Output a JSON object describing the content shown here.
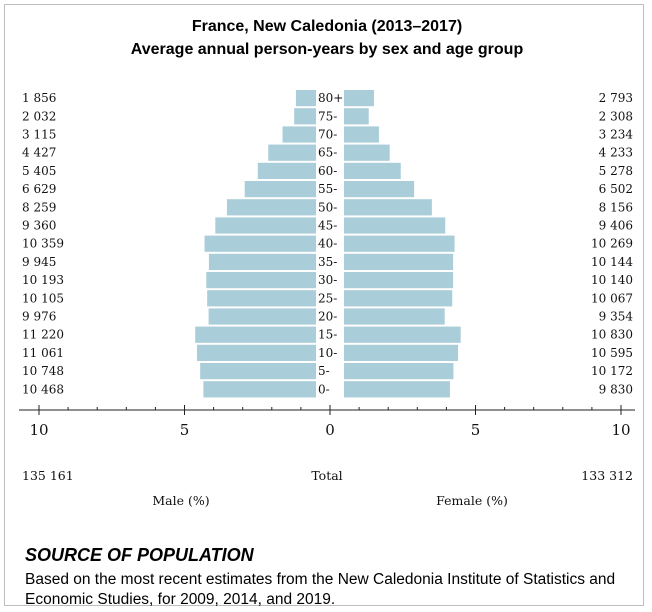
{
  "chart_data": {
    "type": "bar",
    "title": "France, New Caledonia (2013–2017)",
    "subtitle": "Average annual person-years by sex and age group",
    "age_groups": [
      "80+",
      "75-",
      "70-",
      "65-",
      "60-",
      "55-",
      "50-",
      "45-",
      "40-",
      "35-",
      "30-",
      "25-",
      "20-",
      "15-",
      "10-",
      "5-",
      "0-"
    ],
    "series": [
      {
        "name": "Male (%)",
        "person_years": [
          "1 856",
          "2 032",
          "3 115",
          "4 427",
          "5 405",
          "6 629",
          "8 259",
          "9 360",
          "10 359",
          "9 945",
          "10 193",
          "10 105",
          "9 976",
          "11 220",
          "11 061",
          "10 748",
          "10 468"
        ],
        "values_percent": [
          0.69,
          0.75,
          1.15,
          1.64,
          2.0,
          2.45,
          3.06,
          3.46,
          3.83,
          3.68,
          3.77,
          3.74,
          3.69,
          4.15,
          4.09,
          3.98,
          3.87
        ]
      },
      {
        "name": "Female (%)",
        "person_years": [
          "2 793",
          "2 308",
          "3 234",
          "4 233",
          "5 278",
          "6 502",
          "8 156",
          "9 406",
          "10 269",
          "10 144",
          "10 140",
          "10 067",
          "9 354",
          "10 830",
          "10 595",
          "10 172",
          "9 830"
        ],
        "values_percent": [
          1.03,
          0.85,
          1.2,
          1.57,
          1.95,
          2.41,
          3.02,
          3.48,
          3.8,
          3.75,
          3.75,
          3.72,
          3.46,
          4.01,
          3.92,
          3.76,
          3.64
        ]
      }
    ],
    "x_ticks": [
      "10",
      "5",
      "0",
      "5",
      "10"
    ],
    "xlim": [
      -10,
      10
    ],
    "totals": {
      "male": "135 161",
      "label": "Total",
      "female": "133 312"
    },
    "xlabel_left": "Male (%)",
    "xlabel_right": "Female (%)"
  },
  "source": {
    "heading": "SOURCE OF POPULATION",
    "text": "Based on the most recent estimates from the New Caledonia Institute of Statistics and Economic Studies, for 2009, 2014, and 2019."
  }
}
